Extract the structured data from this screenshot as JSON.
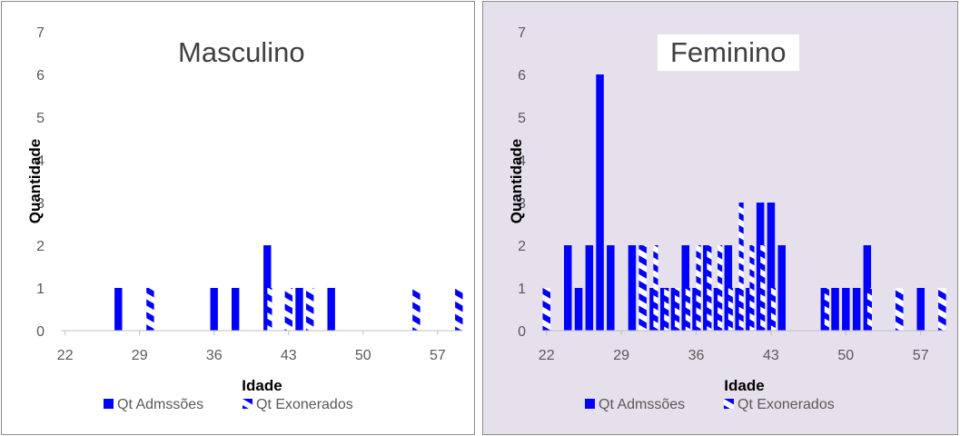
{
  "colors": {
    "bar": "#0000ff",
    "axis": "#bfbfbf",
    "text": "#595959"
  },
  "chart_data": [
    {
      "type": "bar",
      "title": "Masculino",
      "xlabel": "Idade",
      "ylabel": "Quantidade",
      "ylim": [
        0,
        7
      ],
      "yticks": [
        0,
        1,
        2,
        3,
        4,
        5,
        6,
        7
      ],
      "xlim": [
        22,
        59
      ],
      "xticks": [
        22,
        29,
        36,
        43,
        50,
        57
      ],
      "legend": [
        "Qt Admssões",
        "Qt Exonerados"
      ],
      "legend_position": "bottom",
      "grid": false,
      "background": "#ffffff",
      "series": [
        {
          "name": "Qt Admssões",
          "pattern": "solid",
          "x": [
            27,
            36,
            38,
            41,
            44,
            47
          ],
          "values": [
            1,
            1,
            1,
            2,
            1,
            1
          ]
        },
        {
          "name": "Qt Exonerados",
          "pattern": "dashed",
          "x": [
            30,
            41,
            43,
            45,
            55,
            59
          ],
          "values": [
            1,
            1,
            1,
            1,
            1,
            1
          ]
        }
      ]
    },
    {
      "type": "bar",
      "title": "Feminino",
      "xlabel": "Idade",
      "ylabel": "Quantidade",
      "ylim": [
        0,
        7
      ],
      "yticks": [
        0,
        1,
        2,
        3,
        4,
        5,
        6,
        7
      ],
      "xlim": [
        22,
        59
      ],
      "xticks": [
        22,
        29,
        36,
        43,
        50,
        57
      ],
      "legend": [
        "Qt Admssões",
        "Qt Exonerados"
      ],
      "legend_position": "bottom",
      "grid": false,
      "background": "#e6e0ec",
      "series": [
        {
          "name": "Qt Admssões",
          "pattern": "solid",
          "x": [
            24,
            25,
            26,
            27,
            28,
            30,
            32,
            33,
            34,
            35,
            36,
            37,
            38,
            39,
            40,
            41,
            42,
            43,
            44,
            48,
            49,
            50,
            51,
            52,
            57
          ],
          "values": [
            2,
            1,
            2,
            6,
            2,
            2,
            1,
            1,
            1,
            2,
            1,
            2,
            1,
            2,
            1,
            1,
            3,
            3,
            2,
            1,
            1,
            1,
            1,
            2,
            1
          ]
        },
        {
          "name": "Qt Exonerados",
          "pattern": "dashed",
          "x": [
            22,
            31,
            32,
            33,
            34,
            35,
            36,
            37,
            38,
            39,
            40,
            41,
            42,
            43,
            48,
            52,
            55,
            59
          ],
          "values": [
            1,
            2,
            2,
            1,
            1,
            1,
            2,
            2,
            2,
            1,
            3,
            2,
            2,
            1,
            1,
            1,
            1,
            1
          ]
        }
      ]
    }
  ]
}
